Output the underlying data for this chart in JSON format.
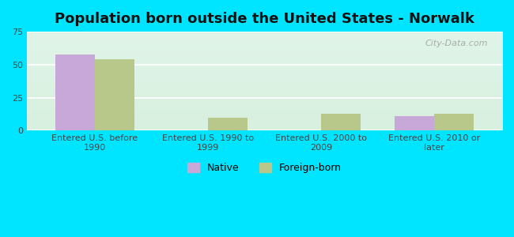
{
  "title": "Population born outside the United States - Norwalk",
  "categories": [
    "Entered U.S. before\n1990",
    "Entered U.S. 1990 to\n1999",
    "Entered U.S. 2000 to\n2009",
    "Entered U.S. 2010 or\nlater"
  ],
  "native_values": [
    58,
    0,
    0,
    11
  ],
  "foreign_born_values": [
    54,
    10,
    13,
    13
  ],
  "native_color": "#c8a8d8",
  "foreign_born_color": "#b8c88a",
  "ylim": [
    0,
    75
  ],
  "yticks": [
    0,
    25,
    50,
    75
  ],
  "bar_width": 0.35,
  "background_outer": "#00e5ff",
  "background_inner_top": "#e8f5e0",
  "background_inner_bottom": "#e0f8f0",
  "grid_color": "#ffffff",
  "watermark": "City-Data.com",
  "legend_native": "Native",
  "legend_foreign": "Foreign-born",
  "title_fontsize": 13,
  "tick_fontsize": 8,
  "legend_fontsize": 9
}
